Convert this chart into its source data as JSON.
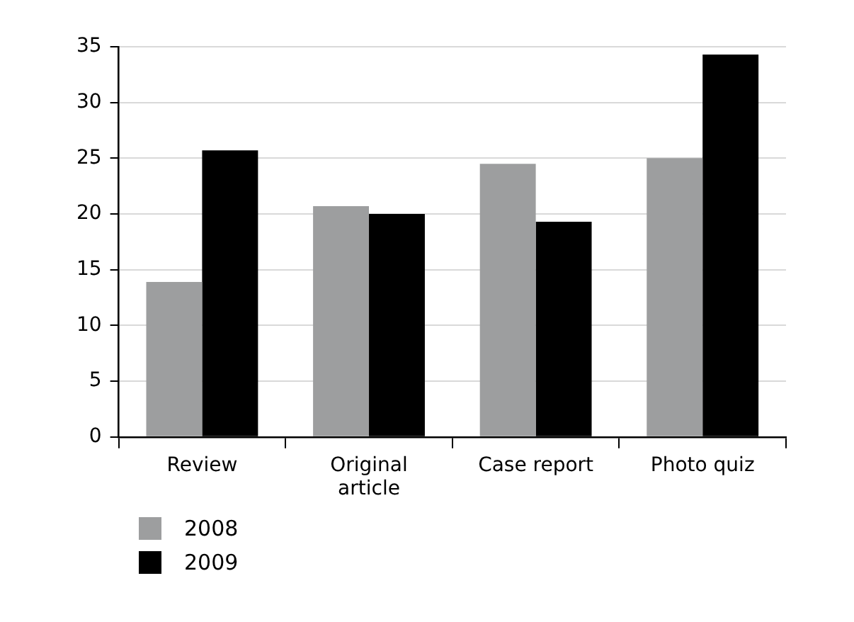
{
  "chart_data": {
    "type": "bar",
    "categories": [
      "Review",
      "Original article",
      "Case report",
      "Photo quiz"
    ],
    "series": [
      {
        "name": "2008",
        "color": "#9d9e9f",
        "values": [
          13.9,
          20.7,
          24.5,
          25.0
        ]
      },
      {
        "name": "2009",
        "color": "#000000",
        "values": [
          25.7,
          20.0,
          19.3,
          34.3
        ]
      }
    ],
    "ylim": [
      0,
      35
    ],
    "yticks": [
      0,
      5,
      10,
      15,
      20,
      25,
      30,
      35
    ],
    "grid": "y",
    "legend": "bottom left"
  }
}
